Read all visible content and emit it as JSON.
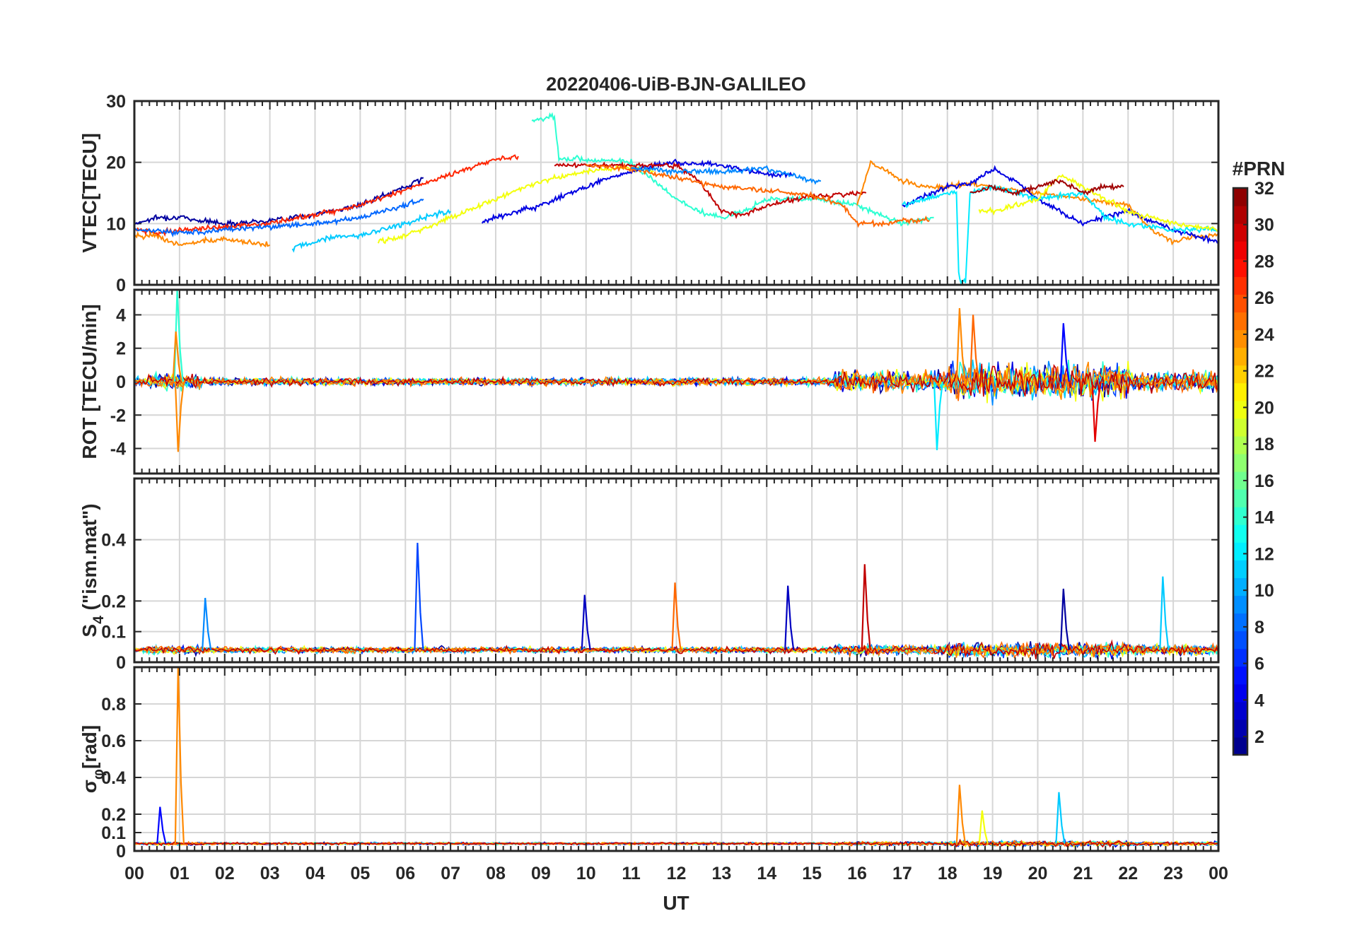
{
  "chart_data": {
    "type": "line",
    "title": "20220406-UiB-BJN-GALILEO",
    "xlabel": "UT",
    "x_tick_labels": [
      "00",
      "01",
      "02",
      "03",
      "04",
      "05",
      "06",
      "07",
      "08",
      "09",
      "10",
      "11",
      "12",
      "13",
      "14",
      "15",
      "16",
      "17",
      "18",
      "19",
      "20",
      "21",
      "22",
      "23",
      "00"
    ],
    "x_range_hours": [
      0,
      24
    ],
    "grid": true,
    "colorbar": {
      "label": "#PRN",
      "range": [
        1,
        32
      ],
      "tick_labels": [
        "2",
        "4",
        "6",
        "8",
        "10",
        "12",
        "14",
        "16",
        "18",
        "20",
        "22",
        "24",
        "26",
        "28",
        "30",
        "32"
      ],
      "colormap": "jet",
      "placement": "right"
    },
    "panels": [
      {
        "ylabel": "VTEC[TECU]",
        "ylim": [
          0,
          30
        ],
        "y_tick_labels": [
          "0",
          "10",
          "20",
          "30"
        ],
        "series": [
          {
            "prn": 2,
            "x": [
              0,
              0.5,
              1,
              2,
              3,
              4,
              5,
              5.5,
              6,
              6.4
            ],
            "y": [
              10,
              11,
              11,
              10,
              10.5,
              11.5,
              13,
              14.5,
              16,
              17.5
            ]
          },
          {
            "prn": 27,
            "x": [
              0,
              0.5,
              1,
              2,
              3,
              4,
              5,
              6,
              7,
              8,
              8.5
            ],
            "y": [
              9,
              8.5,
              9,
              9.5,
              10,
              11.5,
              13,
              15.5,
              18,
              20.5,
              21
            ]
          },
          {
            "prn": 24,
            "x": [
              0,
              0.5,
              1,
              1.5,
              2,
              2.5,
              3
            ],
            "y": [
              8,
              8,
              6.5,
              7,
              7.5,
              7,
              6.5
            ]
          },
          {
            "prn": 11,
            "x": [
              3.5,
              4,
              4.5,
              5,
              5.5,
              6,
              6.4,
              7
            ],
            "y": [
              6,
              7,
              8,
              8,
              9,
              10,
              11,
              12
            ]
          },
          {
            "prn": 8,
            "x": [
              0,
              1,
              2,
              3,
              4,
              5,
              5.5,
              6,
              6.4
            ],
            "y": [
              9,
              8.5,
              9,
              9.5,
              10,
              11,
              12,
              13,
              14
            ]
          },
          {
            "prn": 20,
            "x": [
              5.4,
              6,
              7,
              8,
              9,
              10,
              10.5,
              11,
              11.5
            ],
            "y": [
              7,
              8,
              11,
              14,
              17,
              18.5,
              19,
              19,
              18.5
            ]
          },
          {
            "prn": 14,
            "x": [
              8.8,
              9,
              9.2,
              9.3,
              9.4,
              10,
              11,
              12,
              12.5,
              13,
              13.5,
              14,
              15,
              16,
              17,
              17.7
            ],
            "y": [
              27,
              27,
              27.5,
              27.5,
              20.5,
              20.5,
              20,
              14,
              12,
              11,
              12,
              14,
              14,
              13,
              10,
              11
            ]
          },
          {
            "prn": 4,
            "x": [
              7.7,
              8,
              9,
              10,
              10.5,
              11,
              11.5,
              12,
              13,
              14,
              14.6
            ],
            "y": [
              10,
              11,
              13,
              16,
              17.5,
              18.5,
              19.5,
              20,
              19.5,
              18,
              18
            ]
          },
          {
            "prn": 30,
            "x": [
              9.3,
              10,
              11,
              12,
              12.5,
              13,
              13.5,
              14,
              15,
              16.2
            ],
            "y": [
              19.5,
              19.5,
              19.5,
              19.5,
              17,
              12,
              11.5,
              13,
              14.5,
              15
            ]
          },
          {
            "prn": 25,
            "x": [
              10,
              11,
              12,
              13,
              14,
              15,
              15.7,
              16,
              16.5,
              17,
              17.6
            ],
            "y": [
              19.5,
              19,
              17.5,
              16,
              15.5,
              14.5,
              13,
              10,
              10,
              10.5,
              10.5
            ]
          },
          {
            "prn": 9,
            "x": [
              11,
              12,
              13,
              14,
              15,
              15.2
            ],
            "y": [
              19,
              18.5,
              18.5,
              19,
              17,
              17
            ]
          },
          {
            "prn": 24,
            "x": [
              16,
              16.3,
              17,
              17.5,
              18,
              18.5,
              19,
              20,
              21,
              22,
              22.5,
              23,
              23.5,
              24
            ],
            "y": [
              13,
              20,
              17,
              16,
              16,
              16.5,
              16,
              15,
              14,
              13,
              9,
              7,
              8,
              8
            ]
          },
          {
            "prn": 4,
            "x": [
              17,
              18,
              18.5,
              19,
              19.5,
              20,
              20.5,
              21,
              21.5,
              22,
              23,
              24
            ],
            "y": [
              13,
              16,
              16.5,
              19,
              17,
              14,
              12,
              10,
              11,
              12,
              9,
              7
            ]
          },
          {
            "prn": 12,
            "x": [
              17,
              17.5,
              18,
              18.2,
              18.25,
              18.3,
              18.4,
              18.5,
              19,
              20,
              21,
              21.5,
              22,
              23,
              24
            ],
            "y": [
              13,
              14,
              15,
              15,
              2,
              0.5,
              0.5,
              15,
              16,
              14,
              15,
              11,
              10,
              9,
              9
            ]
          },
          {
            "prn": 20,
            "x": [
              18.7,
              19,
              20,
              20.5,
              21,
              22,
              22.5,
              23,
              24
            ],
            "y": [
              12,
              12,
              14,
              18,
              16,
              12,
              11,
              10,
              9
            ]
          },
          {
            "prn": 31,
            "x": [
              18.5,
              19,
              19.5,
              20,
              20.5,
              21,
              21.5,
              21.9
            ],
            "y": [
              15,
              16,
              15,
              16,
              17,
              15,
              16,
              16
            ]
          }
        ]
      },
      {
        "ylabel": "ROT [TECU/min]",
        "ylim": [
          -5.5,
          5.5
        ],
        "y_tick_labels": [
          "-4",
          "-2",
          "0",
          "2",
          "4"
        ],
        "spike_events": [
          {
            "prn": 14,
            "x": 0.98,
            "y": 5.5
          },
          {
            "prn": 24,
            "x": 1.0,
            "y": -4.2
          },
          {
            "prn": 24,
            "x": 0.95,
            "y": 3.0
          },
          {
            "prn": 24,
            "x": 18.3,
            "y": 4.4
          },
          {
            "prn": 12,
            "x": 17.8,
            "y": -4.1
          },
          {
            "prn": 25,
            "x": 18.6,
            "y": 4.0
          },
          {
            "prn": 5,
            "x": 20.6,
            "y": 3.5
          },
          {
            "prn": 29,
            "x": 21.3,
            "y": -3.6
          }
        ]
      },
      {
        "ylabel": "S4 (\"ism.mat\")",
        "ylabel_main": "S",
        "ylabel_sub": "4",
        "ylabel_rest": " (\"ism.mat\")",
        "ylim": [
          0,
          0.6
        ],
        "y_tick_labels": [
          "0",
          "0.1",
          "0.2",
          "0.4"
        ],
        "spike_events": [
          {
            "prn": 7,
            "x": 6.3,
            "y": 0.39
          },
          {
            "prn": 30,
            "x": 16.2,
            "y": 0.32
          },
          {
            "prn": 3,
            "x": 14.5,
            "y": 0.25
          },
          {
            "prn": 25,
            "x": 12.0,
            "y": 0.26
          },
          {
            "prn": 11,
            "x": 22.8,
            "y": 0.28
          },
          {
            "prn": 3,
            "x": 10.0,
            "y": 0.22
          },
          {
            "prn": 9,
            "x": 1.6,
            "y": 0.21
          },
          {
            "prn": 2,
            "x": 20.6,
            "y": 0.24
          }
        ]
      },
      {
        "ylabel": "σφ[rad]",
        "ylabel_main": "σ",
        "ylabel_sub": "φ",
        "ylabel_rest": "[rad]",
        "ylim": [
          0,
          1.0
        ],
        "y_tick_labels": [
          "0",
          "0.1",
          "0.2",
          "0.4",
          "0.6",
          "0.8"
        ],
        "spike_events": [
          {
            "prn": 24,
            "x": 1.0,
            "y": 1.0
          },
          {
            "prn": 24,
            "x": 18.3,
            "y": 0.36
          },
          {
            "prn": 11,
            "x": 20.5,
            "y": 0.32
          },
          {
            "prn": 20,
            "x": 18.8,
            "y": 0.22
          },
          {
            "prn": 5,
            "x": 0.6,
            "y": 0.24
          }
        ]
      }
    ]
  }
}
